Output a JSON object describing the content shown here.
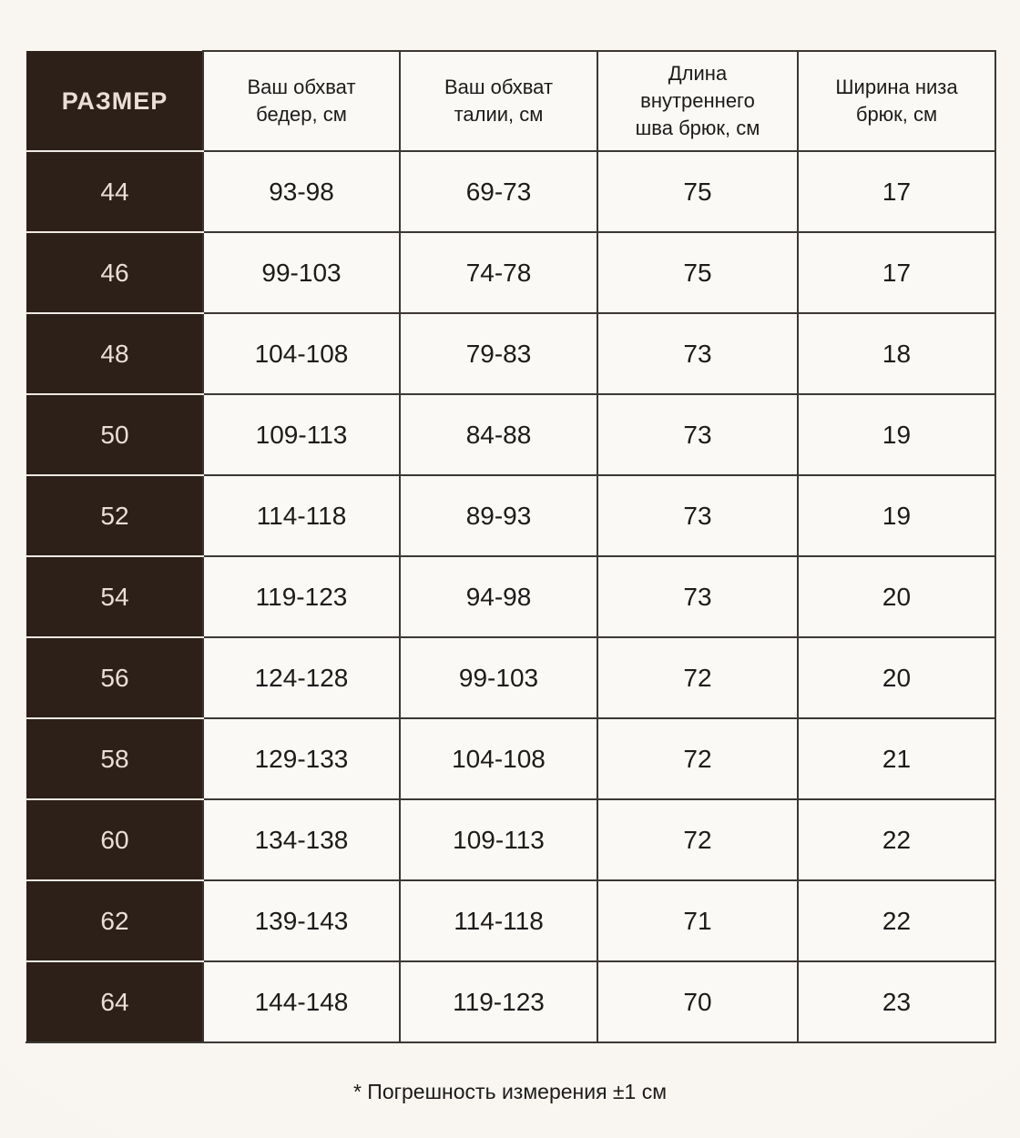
{
  "chart_data": {
    "type": "table",
    "columns": [
      "РАЗМЕР",
      "Ваш обхват бедер, см",
      "Ваш обхват талии, см",
      "Длина внутреннего шва брюк, см",
      "Ширина низа брюк, см"
    ],
    "columns_display": [
      "РАЗМЕР",
      "Ваш обхват\nбедер, см",
      "Ваш обхват\nталии, см",
      "Длина\nвнутреннего\nшва брюк, см",
      "Ширина низа\nбрюк, см"
    ],
    "rows": [
      [
        "44",
        "93-98",
        "69-73",
        "75",
        "17"
      ],
      [
        "46",
        "99-103",
        "74-78",
        "75",
        "17"
      ],
      [
        "48",
        "104-108",
        "79-83",
        "73",
        "18"
      ],
      [
        "50",
        "109-113",
        "84-88",
        "73",
        "19"
      ],
      [
        "52",
        "114-118",
        "89-93",
        "73",
        "19"
      ],
      [
        "54",
        "119-123",
        "94-98",
        "73",
        "20"
      ],
      [
        "56",
        "124-128",
        "99-103",
        "72",
        "20"
      ],
      [
        "58",
        "129-133",
        "104-108",
        "72",
        "21"
      ],
      [
        "60",
        "134-138",
        "109-113",
        "72",
        "22"
      ],
      [
        "62",
        "139-143",
        "114-118",
        "71",
        "22"
      ],
      [
        "64",
        "144-148",
        "119-123",
        "70",
        "23"
      ]
    ]
  },
  "footnote": "* Погрешность измерения ±1 см",
  "colors": {
    "page_bg": "#f5f1ec",
    "cell_bg": "#fbf9f6",
    "dark_cell_bg": "#2d2019",
    "dark_cell_text": "#eadfd6",
    "border": "#3b3733",
    "text": "#1c1b1a"
  }
}
